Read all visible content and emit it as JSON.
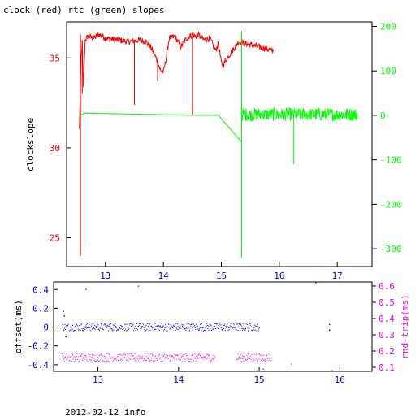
{
  "figure_title": "clock (red) rtc (green) slopes",
  "footer": "2012-02-12 info",
  "colors": {
    "clock": "#ff0000",
    "rtc": "#00ff00",
    "offset": "#0000ff",
    "rndtrip": "#ff00ff",
    "axis": "#000000"
  },
  "chart_data": [
    {
      "type": "line",
      "title": "clock (red) rtc (green) slopes",
      "ylabel": "clockslope",
      "xlim": [
        12.33,
        17.6
      ],
      "ylim": [
        23.4,
        37.0
      ],
      "y2lim": [
        -340,
        210
      ],
      "xticks": [
        "13",
        "14",
        "15",
        "16",
        "17"
      ],
      "yticks": [
        "25",
        "30",
        "35"
      ],
      "y2ticks": [
        "-300",
        "-200",
        "-100",
        "0",
        "100",
        "200"
      ],
      "series": [
        {
          "axis": "left",
          "color": "#ff0000",
          "noise": 0.35,
          "x": [
            12.55,
            12.58,
            12.6,
            12.62,
            12.65,
            12.7,
            12.8,
            12.9,
            13.0,
            13.2,
            13.4,
            13.6,
            13.7,
            13.8,
            13.9,
            13.95,
            14.0,
            14.05,
            14.1,
            14.2,
            14.3,
            14.4,
            14.5,
            14.55,
            14.6,
            14.7,
            14.8,
            14.9,
            14.95,
            15.0,
            15.03,
            15.1,
            15.3,
            15.9
          ],
          "y": [
            31.0,
            35.0,
            35.8,
            33.3,
            36.0,
            36.2,
            36.1,
            36.3,
            36.1,
            36.0,
            35.9,
            36.0,
            35.9,
            35.5,
            34.8,
            34.3,
            34.2,
            35.0,
            36.1,
            36.2,
            35.6,
            36.1,
            36.3,
            36.2,
            36.3,
            36.0,
            36.1,
            35.4,
            35.8,
            34.7,
            34.6,
            35.0,
            35.9,
            35.4
          ]
        },
        {
          "axis": "right",
          "color": "#00ff00",
          "noise": 0,
          "x": [
            12.55,
            12.62,
            12.63,
            14.5,
            14.95,
            15.35,
            15.35
          ],
          "y": [
            2,
            2,
            5,
            0,
            0,
            -60,
            0
          ]
        },
        {
          "axis": "right",
          "color": "#00ff00",
          "noise": 30,
          "x": [
            15.35,
            17.35
          ],
          "y": [
            2,
            2
          ]
        }
      ],
      "spikes": [
        {
          "axis": "left",
          "x": 12.57,
          "from": 36.3,
          "to": 24.0
        },
        {
          "axis": "left",
          "x": 12.6,
          "from": 36.0,
          "to": 33.0
        },
        {
          "axis": "left",
          "x": 13.5,
          "from": 36.0,
          "to": 32.4
        },
        {
          "axis": "left",
          "x": 14.5,
          "from": 36.2,
          "to": 31.8
        },
        {
          "axis": "left",
          "x": 13.9,
          "from": 35.0,
          "to": 33.7
        },
        {
          "axis": "right",
          "x": 15.35,
          "from": 190,
          "to": -320
        },
        {
          "axis": "right",
          "x": 16.25,
          "from": 0,
          "to": -110
        }
      ]
    },
    {
      "type": "scatter",
      "ylabel": "offset(ms)",
      "y2label": "rnd-trip(ms)",
      "xlim": [
        12.45,
        16.4
      ],
      "ylim": [
        -0.47,
        0.48
      ],
      "y2lim": [
        0.075,
        0.625
      ],
      "xticks": [
        "13",
        "14",
        "15",
        "16"
      ],
      "yticks": [
        "-0.4",
        "-0.2",
        "0",
        "0.2",
        "0.4"
      ],
      "y2ticks": [
        "0.1",
        "0.2",
        "0.3",
        "0.4",
        "0.5",
        "0.6"
      ],
      "series": [
        {
          "axis": "left",
          "color": "#0000ff",
          "segments": [
            [
              12.55,
              15.0
            ]
          ],
          "center": 0.0,
          "spread": 0.04,
          "extra_points": [
            [
              12.57,
              0.17
            ],
            [
              12.58,
              0.12
            ],
            [
              12.6,
              -0.1
            ],
            [
              15.87,
              0.03
            ],
            [
              15.87,
              -0.03
            ]
          ]
        },
        {
          "axis": "right",
          "color": "#ff00ff",
          "segments": [
            [
              12.55,
              14.45
            ],
            [
              14.72,
              15.13
            ]
          ],
          "center": 0.16,
          "spread": 0.025,
          "extra_points": [
            [
              12.85,
              0.58
            ],
            [
              13.5,
              0.6
            ],
            [
              15.05,
              0.09
            ],
            [
              15.4,
              0.12
            ],
            [
              15.9,
              0.08
            ],
            [
              15.7,
              0.62
            ]
          ]
        }
      ]
    }
  ]
}
